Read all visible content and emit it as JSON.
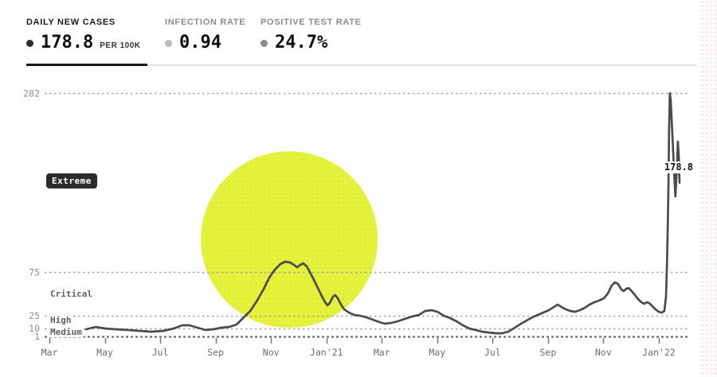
{
  "header": {
    "metrics": [
      {
        "id": "daily-new-cases",
        "label": "DAILY NEW CASES",
        "value": "178.8",
        "suffix": "PER 100K",
        "active": true,
        "dot_color": "#2b2b2b"
      },
      {
        "id": "infection-rate",
        "label": "INFECTION RATE",
        "value": "0.94",
        "suffix": "",
        "active": false,
        "dot_color": "#bcbcbc"
      },
      {
        "id": "positive-test-rate",
        "label": "POSITIVE TEST RATE",
        "value": "24.7%",
        "suffix": "",
        "active": false,
        "dot_color": "#8b8b8b"
      }
    ],
    "active_underline_color": "#1a1a1a",
    "divider_color": "#e3e3e3"
  },
  "chart_data": {
    "type": "line",
    "x_unit": "months since Mar 2020",
    "x_tick_months": [
      0,
      2,
      4,
      6,
      8,
      10,
      12,
      14,
      16,
      18,
      20,
      22
    ],
    "x_tick_labels": [
      "Mar",
      "May",
      "Jul",
      "Sep",
      "Nov",
      "Jan'21",
      "Mar",
      "May",
      "Jul",
      "Sep",
      "Nov",
      "Jan'22"
    ],
    "y_ticks": [
      282,
      75,
      25,
      10,
      1
    ],
    "ylim": [
      1,
      282
    ],
    "grid": "dashed",
    "line_color": "#4b4b4b",
    "grid_color": "#a3a3a3",
    "base_grid_color": "#6f6f6f",
    "axis_text_color": "#6e6e6e",
    "ytick_text_color": "#8f8f8f",
    "risk_labels": [
      {
        "text": "Extreme",
        "style": "badge",
        "value": 180,
        "badge_color": "#2c2c2c"
      },
      {
        "text": "Critical",
        "style": "plain",
        "value": 50
      },
      {
        "text": "High",
        "style": "plain",
        "value": 19
      },
      {
        "text": "Medium",
        "style": "plain",
        "value": 6
      }
    ],
    "annotation": {
      "text": "178.8",
      "month": 22.72,
      "value": 197
    },
    "highlight_circle": {
      "month": 8.66,
      "value": 113,
      "radius_px": 111,
      "color": "#e4f23c"
    },
    "series": {
      "name": "Daily new cases per 100k",
      "points": [
        [
          1.32,
          9.3
        ],
        [
          1.67,
          12.0
        ],
        [
          2.01,
          10.2
        ],
        [
          2.39,
          9.3
        ],
        [
          2.82,
          8.4
        ],
        [
          3.25,
          7.4
        ],
        [
          3.68,
          6.5
        ],
        [
          4.11,
          7.4
        ],
        [
          4.49,
          10.2
        ],
        [
          4.8,
          13.9
        ],
        [
          5.06,
          13.9
        ],
        [
          5.35,
          11.1
        ],
        [
          5.64,
          8.4
        ],
        [
          5.92,
          9.3
        ],
        [
          6.21,
          11.1
        ],
        [
          6.5,
          12.0
        ],
        [
          6.76,
          14.8
        ],
        [
          6.99,
          22.1
        ],
        [
          7.25,
          30.4
        ],
        [
          7.48,
          41.4
        ],
        [
          7.71,
          54.3
        ],
        [
          7.94,
          69.0
        ],
        [
          8.14,
          78.2
        ],
        [
          8.34,
          84.6
        ],
        [
          8.51,
          87.4
        ],
        [
          8.69,
          86.5
        ],
        [
          8.83,
          83.7
        ],
        [
          8.94,
          81.0
        ],
        [
          9.06,
          83.7
        ],
        [
          9.17,
          85.6
        ],
        [
          9.29,
          81.9
        ],
        [
          9.4,
          75.5
        ],
        [
          9.55,
          66.3
        ],
        [
          9.69,
          57.1
        ],
        [
          9.83,
          47.9
        ],
        [
          9.95,
          40.5
        ],
        [
          10.04,
          36.9
        ],
        [
          10.12,
          39.6
        ],
        [
          10.24,
          47.0
        ],
        [
          10.32,
          48.8
        ],
        [
          10.41,
          45.1
        ],
        [
          10.53,
          37.8
        ],
        [
          10.64,
          32.3
        ],
        [
          10.81,
          28.6
        ],
        [
          11.01,
          25.8
        ],
        [
          11.22,
          24.9
        ],
        [
          11.45,
          23.1
        ],
        [
          11.68,
          20.3
        ],
        [
          11.91,
          17.6
        ],
        [
          12.11,
          15.7
        ],
        [
          12.34,
          16.6
        ],
        [
          12.57,
          18.5
        ],
        [
          12.83,
          21.2
        ],
        [
          13.09,
          24.0
        ],
        [
          13.34,
          25.8
        ],
        [
          13.57,
          30.4
        ],
        [
          13.8,
          31.3
        ],
        [
          14.01,
          29.5
        ],
        [
          14.24,
          24.9
        ],
        [
          14.47,
          22.1
        ],
        [
          14.7,
          18.5
        ],
        [
          14.93,
          13.9
        ],
        [
          15.16,
          10.2
        ],
        [
          15.39,
          8.4
        ],
        [
          15.62,
          6.5
        ],
        [
          15.85,
          5.6
        ],
        [
          16.11,
          4.7
        ],
        [
          16.34,
          4.7
        ],
        [
          16.57,
          6.5
        ],
        [
          16.8,
          11.1
        ],
        [
          17.03,
          15.7
        ],
        [
          17.23,
          19.4
        ],
        [
          17.43,
          23.1
        ],
        [
          17.63,
          25.8
        ],
        [
          17.83,
          28.6
        ],
        [
          18.03,
          31.3
        ],
        [
          18.21,
          35.0
        ],
        [
          18.35,
          37.8
        ],
        [
          18.49,
          35.0
        ],
        [
          18.64,
          32.3
        ],
        [
          18.81,
          30.4
        ],
        [
          18.98,
          29.5
        ],
        [
          19.15,
          31.3
        ],
        [
          19.33,
          34.1
        ],
        [
          19.5,
          37.8
        ],
        [
          19.67,
          40.5
        ],
        [
          19.84,
          42.4
        ],
        [
          20.02,
          45.1
        ],
        [
          20.16,
          50.6
        ],
        [
          20.3,
          59.8
        ],
        [
          20.42,
          63.5
        ],
        [
          20.53,
          61.7
        ],
        [
          20.65,
          55.2
        ],
        [
          20.73,
          53.4
        ],
        [
          20.82,
          56.1
        ],
        [
          20.91,
          57.0
        ],
        [
          21.02,
          53.4
        ],
        [
          21.14,
          48.8
        ],
        [
          21.25,
          44.2
        ],
        [
          21.37,
          40.5
        ],
        [
          21.48,
          38.7
        ],
        [
          21.57,
          40.5
        ],
        [
          21.65,
          39.6
        ],
        [
          21.77,
          35.9
        ],
        [
          21.88,
          32.3
        ],
        [
          22.0,
          29.5
        ],
        [
          22.11,
          28.6
        ],
        [
          22.2,
          30.4
        ],
        [
          22.26,
          47.0
        ],
        [
          22.29,
          77.3
        ],
        [
          22.32,
          123.2
        ],
        [
          22.35,
          178.4
        ],
        [
          22.37,
          238.1
        ],
        [
          22.4,
          282.0
        ],
        [
          22.43,
          274.0
        ],
        [
          22.49,
          233.5
        ],
        [
          22.55,
          192.2
        ],
        [
          22.6,
          162.8
        ],
        [
          22.66,
          201.4
        ],
        [
          22.69,
          226.2
        ],
        [
          22.72,
          209.7
        ],
        [
          22.75,
          178.8
        ]
      ]
    }
  }
}
